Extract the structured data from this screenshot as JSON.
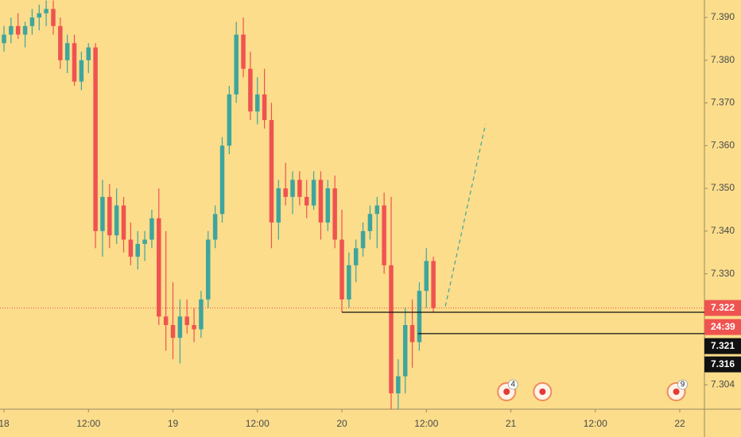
{
  "chart_data": {
    "type": "candlestick",
    "up_color": "#3ea59e",
    "down_color": "#ef5350",
    "xlim": [
      -0.565,
      99.5
    ],
    "ylim": [
      7.2983,
      7.3941
    ],
    "xticks": [
      {
        "value": 0,
        "label": "18"
      },
      {
        "value": 12,
        "label": "12:00"
      },
      {
        "value": 24,
        "label": "19"
      },
      {
        "value": 36,
        "label": "12:00"
      },
      {
        "value": 48,
        "label": "20"
      },
      {
        "value": 60,
        "label": "12:00"
      },
      {
        "value": 72,
        "label": "21"
      },
      {
        "value": 84,
        "label": "12:00"
      },
      {
        "value": 96,
        "label": "22"
      }
    ],
    "yticks": [
      {
        "value": 7.39,
        "label": "7.390"
      },
      {
        "value": 7.38,
        "label": "7.380"
      },
      {
        "value": 7.37,
        "label": "7.370"
      },
      {
        "value": 7.36,
        "label": "7.360"
      },
      {
        "value": 7.35,
        "label": "7.350"
      },
      {
        "value": 7.34,
        "label": "7.340"
      },
      {
        "value": 7.33,
        "label": "7.330"
      },
      7.304
    ],
    "x": [
      0,
      1,
      2,
      3,
      4,
      5,
      6,
      7,
      8,
      9,
      10,
      11,
      12,
      13,
      14,
      15,
      16,
      17,
      18,
      19,
      20,
      21,
      22,
      23,
      24,
      25,
      26,
      27,
      28,
      29,
      30,
      31,
      32,
      33,
      34,
      35,
      36,
      37,
      38,
      39,
      40,
      41,
      42,
      43,
      44,
      45,
      46,
      47,
      48,
      49,
      50,
      51,
      52,
      53,
      54,
      55,
      56,
      57,
      58,
      59,
      60,
      61
    ],
    "open": [
      7.384,
      7.386,
      7.388,
      7.386,
      7.388,
      7.39,
      7.391,
      7.392,
      7.388,
      7.38,
      7.384,
      7.375,
      7.38,
      7.383,
      7.34,
      7.348,
      7.339,
      7.346,
      7.338,
      7.334,
      7.337,
      7.338,
      7.343,
      7.32,
      7.318,
      7.315,
      7.32,
      7.318,
      7.317,
      7.324,
      7.338,
      7.344,
      7.36,
      7.372,
      7.386,
      7.378,
      7.368,
      7.372,
      7.366,
      7.342,
      7.35,
      7.348,
      7.352,
      7.348,
      7.346,
      7.352,
      7.342,
      7.35,
      7.338,
      7.324,
      7.332,
      7.336,
      7.34,
      7.344,
      7.346,
      7.332,
      7.302,
      7.306,
      7.318,
      7.314,
      7.326,
      7.333
    ],
    "high": [
      7.388,
      7.39,
      7.391,
      7.389,
      7.392,
      7.393,
      7.394,
      7.394,
      7.39,
      7.386,
      7.386,
      7.382,
      7.384,
      7.384,
      7.352,
      7.351,
      7.35,
      7.348,
      7.342,
      7.34,
      7.34,
      7.345,
      7.35,
      7.34,
      7.328,
      7.324,
      7.324,
      7.322,
      7.326,
      7.34,
      7.346,
      7.362,
      7.374,
      7.389,
      7.39,
      7.382,
      7.376,
      7.378,
      7.37,
      7.352,
      7.356,
      7.354,
      7.354,
      7.352,
      7.354,
      7.354,
      7.352,
      7.353,
      7.345,
      7.335,
      7.338,
      7.342,
      7.346,
      7.348,
      7.349,
      7.348,
      7.31,
      7.322,
      7.324,
      7.328,
      7.336,
      7.334
    ],
    "low": [
      7.382,
      7.384,
      7.385,
      7.383,
      7.386,
      7.387,
      7.388,
      7.386,
      7.378,
      7.377,
      7.374,
      7.373,
      7.377,
      7.336,
      7.334,
      7.336,
      7.337,
      7.335,
      7.332,
      7.331,
      7.333,
      7.336,
      7.318,
      7.312,
      7.31,
      7.309,
      7.316,
      7.314,
      7.315,
      7.322,
      7.336,
      7.342,
      7.358,
      7.37,
      7.376,
      7.366,
      7.365,
      7.364,
      7.336,
      7.338,
      7.346,
      7.344,
      7.346,
      7.343,
      7.345,
      7.338,
      7.34,
      7.336,
      7.321,
      7.322,
      7.328,
      7.334,
      7.338,
      7.336,
      7.33,
      7.298,
      7.298,
      7.302,
      7.308,
      7.312,
      7.322,
      7.321
    ],
    "close": [
      7.386,
      7.388,
      7.386,
      7.388,
      7.39,
      7.391,
      7.392,
      7.388,
      7.38,
      7.384,
      7.375,
      7.38,
      7.383,
      7.34,
      7.348,
      7.339,
      7.346,
      7.338,
      7.334,
      7.337,
      7.338,
      7.343,
      7.32,
      7.318,
      7.315,
      7.32,
      7.318,
      7.317,
      7.324,
      7.338,
      7.344,
      7.36,
      7.372,
      7.386,
      7.378,
      7.368,
      7.372,
      7.366,
      7.342,
      7.35,
      7.348,
      7.352,
      7.348,
      7.346,
      7.352,
      7.342,
      7.35,
      7.338,
      7.324,
      7.332,
      7.336,
      7.34,
      7.344,
      7.346,
      7.332,
      7.302,
      7.306,
      7.318,
      7.314,
      7.326,
      7.333,
      7.322
    ],
    "last_price": 7.322,
    "countdown": "24:39",
    "levels": [
      {
        "value": 7.321,
        "start": 48
      },
      {
        "value": 7.316,
        "start": 58.8
      }
    ],
    "projection": {
      "x": [
        62.7,
        68.4
      ],
      "values": [
        7.3224,
        7.365
      ]
    },
    "events": [
      {
        "x": 71.4,
        "label": 4
      },
      {
        "x": 76.5
      },
      {
        "x": 95.5,
        "label": 9
      }
    ]
  }
}
